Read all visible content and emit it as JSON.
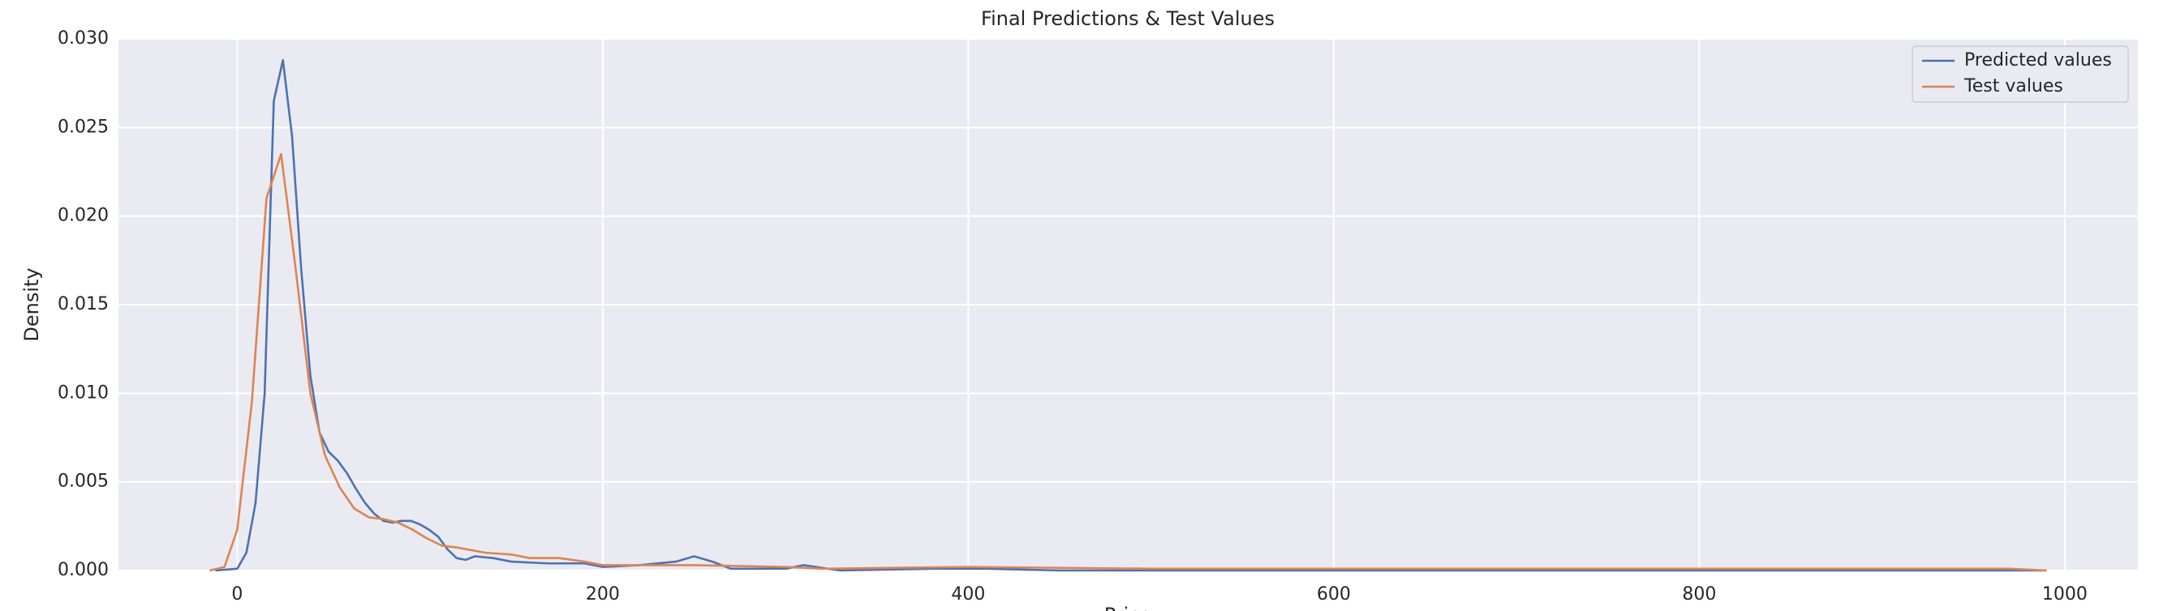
{
  "chart_data": {
    "type": "line",
    "title": "Final Predictions & Test Values",
    "x_label": "Price",
    "y_label": "Density",
    "xlim": [
      -65,
      1040
    ],
    "ylim": [
      0,
      0.03
    ],
    "xticks": [
      0,
      200,
      400,
      600,
      800,
      1000
    ],
    "yticks": [
      {
        "value": 0,
        "label": "0.000"
      },
      {
        "value": 0.005,
        "label": "0.005"
      },
      {
        "value": 0.01,
        "label": "0.010"
      },
      {
        "value": 0.015,
        "label": "0.015"
      },
      {
        "value": 0.02,
        "label": "0.020"
      },
      {
        "value": 0.025,
        "label": "0.025"
      },
      {
        "value": 0.03,
        "label": "0.030"
      }
    ],
    "grid": true,
    "legend": "upper right",
    "series": [
      {
        "name": "Predicted values",
        "color": "#4c72b0",
        "x": [
          -12,
          0,
          5,
          10,
          15,
          20,
          25,
          30,
          35,
          40,
          45,
          50,
          55,
          60,
          65,
          70,
          75,
          80,
          85,
          90,
          95,
          100,
          105,
          110,
          115,
          120,
          125,
          130,
          140,
          150,
          170,
          190,
          200,
          220,
          240,
          250,
          260,
          270,
          300,
          310,
          330,
          380,
          410,
          450,
          990
        ],
        "values": [
          0,
          0.0001,
          0.001,
          0.0038,
          0.01,
          0.0265,
          0.0288,
          0.0245,
          0.017,
          0.011,
          0.0078,
          0.0067,
          0.0062,
          0.0055,
          0.0046,
          0.0038,
          0.0032,
          0.0028,
          0.0027,
          0.0028,
          0.0028,
          0.0026,
          0.0023,
          0.0019,
          0.0012,
          0.0007,
          0.0006,
          0.0008,
          0.0007,
          0.0005,
          0.0004,
          0.0004,
          0.0002,
          0.0003,
          0.0005,
          0.0008,
          0.0005,
          0.0001,
          0.0001,
          0.0003,
          0,
          0.0001,
          0.0001,
          0,
          0
        ]
      },
      {
        "name": "Test values",
        "color": "#dd8452",
        "x": [
          -15,
          -7,
          0,
          8,
          16,
          24,
          32,
          40,
          48,
          56,
          64,
          72,
          80,
          88,
          96,
          104,
          112,
          120,
          136,
          150,
          160,
          176,
          190,
          200,
          220,
          250,
          300,
          320,
          400,
          500,
          570,
          610,
          840,
          940,
          970,
          990
        ],
        "values": [
          0,
          0.0002,
          0.0023,
          0.0095,
          0.021,
          0.0235,
          0.017,
          0.01,
          0.0065,
          0.0047,
          0.0035,
          0.003,
          0.0029,
          0.0027,
          0.0023,
          0.0018,
          0.0014,
          0.0013,
          0.001,
          0.0009,
          0.0007,
          0.0007,
          0.0005,
          0.0003,
          0.0003,
          0.0003,
          0.0002,
          0.0001,
          0.0002,
          0.0001,
          0.0001,
          0.0001,
          0.0001,
          0.0001,
          0.0001,
          0
        ]
      }
    ]
  }
}
